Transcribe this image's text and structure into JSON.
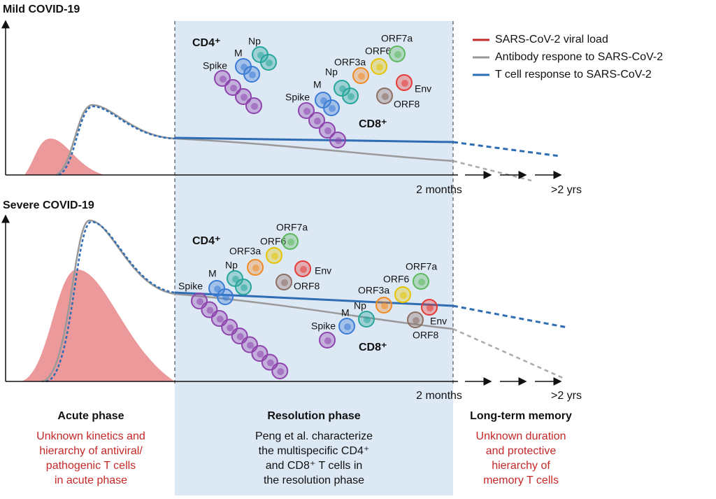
{
  "legend": [
    "SARS-CoV-2 viral load",
    "Antibody respone to SARS-CoV-2",
    "T cell response to SARS-CoV-2"
  ],
  "panels": [
    {
      "title": "Mild COVID-19",
      "months": "2 months",
      "years": ">2 yrs",
      "cd4": {
        "label": "CD4⁺",
        "antigens": [
          {
            "label": "Spike",
            "color": "#8e44ad"
          },
          {
            "label": "M",
            "color": "#3a7bd5"
          },
          {
            "label": "Np",
            "color": "#26a69a"
          }
        ]
      },
      "cd8": {
        "label": "CD8⁺",
        "antigens": [
          {
            "label": "Spike",
            "color": "#8e44ad"
          },
          {
            "label": "M",
            "color": "#3a7bd5"
          },
          {
            "label": "Np",
            "color": "#26a69a"
          },
          {
            "label": "ORF3a",
            "color": "#f08a24"
          },
          {
            "label": "ORF6",
            "color": "#e6c300"
          },
          {
            "label": "ORF7a",
            "color": "#5cb85c"
          },
          {
            "label": "Env",
            "color": "#e53935"
          },
          {
            "label": "ORF8",
            "color": "#8d6e63"
          }
        ]
      }
    },
    {
      "title": "Severe COVID-19",
      "months": "2 months",
      "years": ">2 yrs",
      "cd4": {
        "label": "CD4⁺",
        "antigens": [
          {
            "label": "Spike",
            "color": "#8e44ad"
          },
          {
            "label": "M",
            "color": "#3a7bd5"
          },
          {
            "label": "Np",
            "color": "#26a69a"
          },
          {
            "label": "ORF3a",
            "color": "#f08a24"
          },
          {
            "label": "ORF6",
            "color": "#e6c300"
          },
          {
            "label": "ORF7a",
            "color": "#5cb85c"
          },
          {
            "label": "Env",
            "color": "#e53935"
          },
          {
            "label": "ORF8",
            "color": "#8d6e63"
          }
        ]
      },
      "cd8": {
        "label": "CD8⁺",
        "antigens": [
          {
            "label": "Spike",
            "color": "#8e44ad"
          },
          {
            "label": "M",
            "color": "#3a7bd5"
          },
          {
            "label": "Np",
            "color": "#26a69a"
          },
          {
            "label": "ORF3a",
            "color": "#f08a24"
          },
          {
            "label": "ORF6",
            "color": "#e6c300"
          },
          {
            "label": "ORF7a",
            "color": "#5cb85c"
          },
          {
            "label": "Env",
            "color": "#e53935"
          },
          {
            "label": "ORF8",
            "color": "#8d6e63"
          }
        ]
      }
    }
  ],
  "phases": [
    {
      "title": "Acute phase",
      "lines": [
        "Unknown kinetics and",
        "hierarchy of antiviral/",
        "pathogenic T cells",
        "in acute phase"
      ]
    },
    {
      "title": "Resolution phase",
      "lines": [
        "Peng et al. characterize",
        "the multispecific CD4⁺",
        "and CD8⁺ T cells in",
        "the resolution phase"
      ]
    },
    {
      "title": "Long-term memory",
      "lines": [
        "Unknown duration",
        "and protective",
        "hierarchy of",
        "memory T cells"
      ]
    }
  ]
}
